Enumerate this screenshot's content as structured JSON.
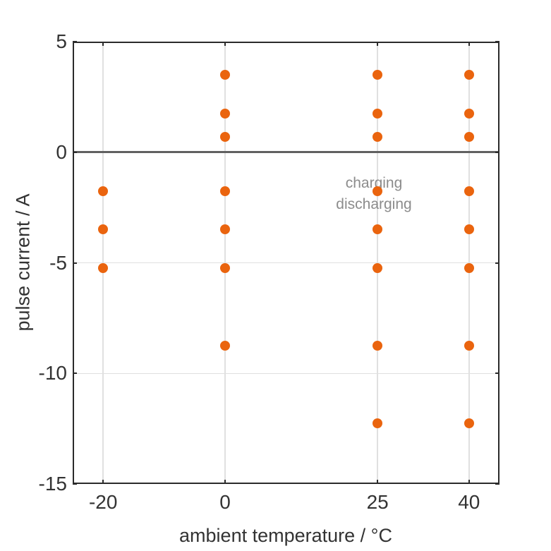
{
  "chart_data": {
    "type": "scatter",
    "title": "",
    "xlabel": "ambient temperature / °C",
    "ylabel": "pulse current / A",
    "xlim": [
      -25,
      45
    ],
    "ylim": [
      -15,
      5
    ],
    "xticks": [
      -20,
      0,
      25,
      40
    ],
    "xtick_labels": [
      "-20",
      "0",
      "25",
      "40"
    ],
    "yticks": [
      5,
      0,
      -5,
      -10,
      -15
    ],
    "ytick_labels": [
      "5",
      "0",
      "-5",
      "-10",
      "-15"
    ],
    "grid": true,
    "legend": "none",
    "marker_color": "#EA640E",
    "grid_color": "#e0e0e0",
    "axis_color": "#2b2b2b",
    "zero_line": {
      "y": 0,
      "color": "#616161",
      "label_above": "charging",
      "label_below": "discharging",
      "label_color": "#8C8C8C"
    },
    "points": [
      [
        -20,
        -1.75
      ],
      [
        -20,
        -3.5
      ],
      [
        -20,
        -5.25
      ],
      [
        0,
        3.5
      ],
      [
        0,
        1.75
      ],
      [
        0,
        0.7
      ],
      [
        0,
        -1.75
      ],
      [
        0,
        -3.5
      ],
      [
        0,
        -5.25
      ],
      [
        0,
        -8.75
      ],
      [
        25,
        3.5
      ],
      [
        25,
        1.75
      ],
      [
        25,
        0.7
      ],
      [
        25,
        -1.75
      ],
      [
        25,
        -3.5
      ],
      [
        25,
        -5.25
      ],
      [
        25,
        -8.75
      ],
      [
        25,
        -12.25
      ],
      [
        40,
        3.5
      ],
      [
        40,
        1.75
      ],
      [
        40,
        0.7
      ],
      [
        40,
        -1.75
      ],
      [
        40,
        -3.5
      ],
      [
        40,
        -5.25
      ],
      [
        40,
        -8.75
      ],
      [
        40,
        -12.25
      ]
    ]
  }
}
